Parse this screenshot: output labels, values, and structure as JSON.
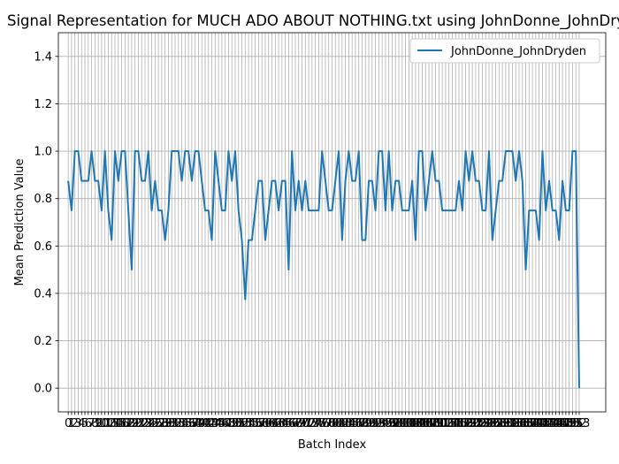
{
  "chart_data": {
    "type": "line",
    "title": "Signal Representation for MUCH ADO ABOUT NOTHING.txt using JohnDonne_JohnDryden",
    "xlabel": "Batch Index",
    "ylabel": "Mean Prediction Value",
    "xlim": [
      -2.95,
      160.95
    ],
    "ylim": [
      -0.1,
      1.5
    ],
    "y_ticks": [
      0.0,
      0.2,
      0.4,
      0.6,
      0.8,
      1.0,
      1.2,
      1.4
    ],
    "grid": true,
    "legend_position": "top-right",
    "x_tick_start": 0,
    "x_tick_count": 154,
    "series": [
      {
        "name": "JohnDonne_JohnDryden",
        "color": "#1f77b4",
        "values": [
          0.875,
          0.75,
          1.0,
          1.0,
          0.875,
          0.875,
          0.875,
          1.0,
          0.875,
          0.875,
          0.75,
          1.0,
          0.75,
          0.625,
          1.0,
          0.875,
          1.0,
          1.0,
          0.75,
          0.5,
          1.0,
          1.0,
          0.875,
          0.875,
          1.0,
          0.75,
          0.875,
          0.75,
          0.75,
          0.625,
          0.75,
          1.0,
          1.0,
          1.0,
          0.875,
          1.0,
          1.0,
          0.875,
          1.0,
          1.0,
          0.875,
          0.75,
          0.75,
          0.625,
          1.0,
          0.875,
          0.75,
          0.75,
          1.0,
          0.875,
          1.0,
          0.75,
          0.625,
          0.375,
          0.625,
          0.625,
          0.75,
          0.875,
          0.875,
          0.625,
          0.75,
          0.875,
          0.875,
          0.75,
          0.875,
          0.875,
          0.5,
          1.0,
          0.75,
          0.875,
          0.75,
          0.875,
          0.75,
          0.75,
          0.75,
          0.75,
          1.0,
          0.875,
          0.75,
          0.75,
          0.875,
          1.0,
          0.625,
          0.875,
          1.0,
          0.875,
          0.875,
          1.0,
          0.625,
          0.625,
          0.875,
          0.875,
          0.75,
          1.0,
          1.0,
          0.75,
          1.0,
          0.75,
          0.875,
          0.875,
          0.75,
          0.75,
          0.75,
          0.875,
          0.625,
          1.0,
          1.0,
          0.75,
          0.875,
          1.0,
          0.875,
          0.875,
          0.75,
          0.75,
          0.75,
          0.75,
          0.75,
          0.875,
          0.75,
          1.0,
          0.875,
          1.0,
          0.875,
          0.875,
          0.75,
          0.75,
          1.0,
          0.625,
          0.75,
          0.875,
          0.875,
          1.0,
          1.0,
          1.0,
          0.875,
          1.0,
          0.875,
          0.5,
          0.75,
          0.75,
          0.75,
          0.625,
          1.0,
          0.75,
          0.875,
          0.75,
          0.75,
          0.625,
          0.875,
          0.75,
          0.75,
          1.0,
          1.0,
          0.0
        ]
      }
    ]
  }
}
